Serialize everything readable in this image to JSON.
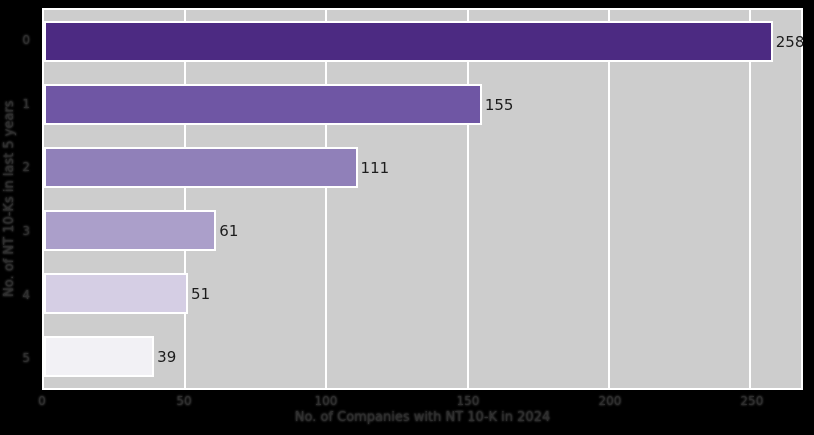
{
  "figure": {
    "outer_background": "#000000",
    "plot_background": "#cdcdcd",
    "grid_color": "#ffffff",
    "spine_color": "#ffffff",
    "tick_text_color": "#2e2e2e",
    "value_label_color": "#1c1c1c"
  },
  "chart_data": {
    "type": "bar",
    "orientation": "horizontal",
    "title": "",
    "xlabel": "No. of Companies with NT 10-K in 2024",
    "ylabel": "No. of NT 10-Ks in last 5 years",
    "categories": [
      "0",
      "1",
      "2",
      "3",
      "4",
      "5"
    ],
    "values": [
      258,
      155,
      111,
      61,
      51,
      39
    ],
    "value_labels": [
      "258",
      "155",
      "111",
      "61",
      "51",
      "39"
    ],
    "bar_colors": [
      "#4c2a82",
      "#6f56a4",
      "#9080b9",
      "#ab9fca",
      "#d5cee4",
      "#f2f1f5"
    ],
    "xlim": [
      0,
      268
    ],
    "xticks": [
      0,
      50,
      100,
      150,
      200,
      250
    ],
    "xtick_labels": [
      "0",
      "50",
      "100",
      "150",
      "200",
      "250"
    ],
    "grid": true,
    "legend": null
  }
}
